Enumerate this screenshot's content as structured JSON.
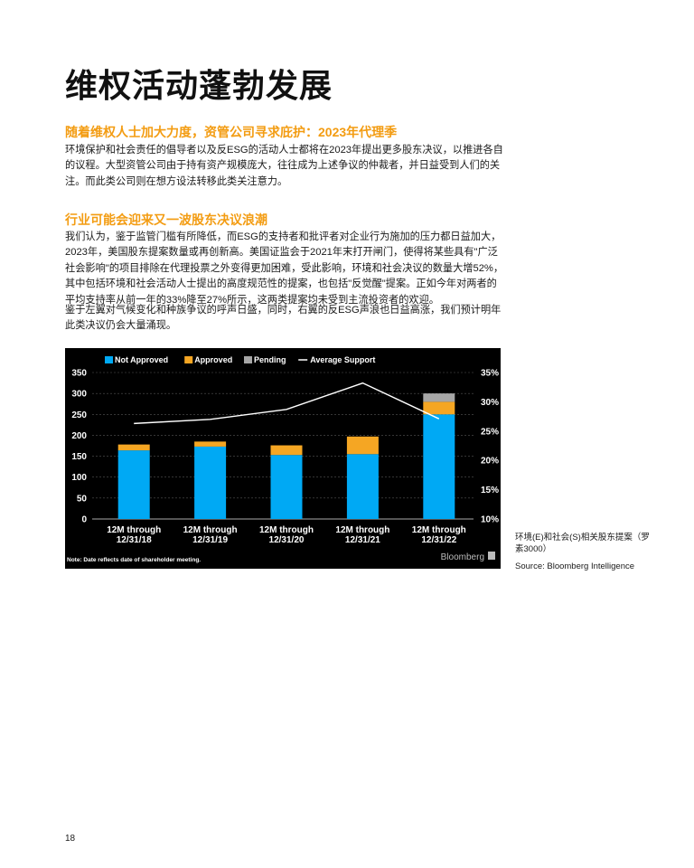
{
  "page": {
    "title": "维权活动蓬勃发展",
    "section1": {
      "heading": "随着维权人士加大力度，资管公司寻求庇护：2023年代理季",
      "body": "环境保护和社会责任的倡导者以及反ESG的活动人士都将在2023年提出更多股东决议，以推进各自的议程。大型资管公司由于持有资产规模庞大，往往成为上述争议的仲裁者，并日益受到人们的关注。而此类公司则在想方设法转移此类关注意力。"
    },
    "section2": {
      "heading": "行业可能会迎来又一波股东决议浪潮",
      "para1": "我们认为，鉴于监管门槛有所降低，而ESG的支持者和批评者对企业行为施加的压力都日益加大，2023年，美国股东提案数量或再创新高。美国证监会于2021年末打开闸门，使得将某些具有\"广泛社会影响\"的项目排除在代理投票之外变得更加困难，受此影响，环境和社会决议的数量大增52%，其中包括环境和社会活动人士提出的高度规范性的提案，也包括\"反觉醒\"提案。正如今年对两者的平均支持率从前一年的33%降至27%所示，这两类提案均未受到主流投资者的欢迎。",
      "para2": "鉴于左翼对气候变化和种族争议的呼声日盛，同时，右翼的反ESG声浪也日益高涨，我们预计明年此类决议仍会大量涌现。"
    },
    "caption": "环境(E)和社会(S)相关股东提案（罗素3000）",
    "source": "Source: Bloomberg Intelligence",
    "page_number": "18"
  },
  "chart_data": {
    "type": "bar",
    "stacked": true,
    "categories": [
      "12M through 12/31/18",
      "12M through 12/31/19",
      "12M through 12/31/20",
      "12M through 12/31/21",
      "12M through 12/31/22"
    ],
    "series": [
      {
        "name": "Not Approved",
        "color": "#00a9f4",
        "values": [
          164,
          173,
          153,
          155,
          250
        ]
      },
      {
        "name": "Approved",
        "color": "#f5a623",
        "values": [
          14,
          12,
          23,
          42,
          30
        ]
      },
      {
        "name": "Pending",
        "color": "#a6a6a6",
        "values": [
          0,
          0,
          0,
          0,
          20
        ]
      }
    ],
    "line": {
      "name": "Average Support",
      "color": "#ffffff",
      "values": [
        26.3,
        27.0,
        28.7,
        33.2,
        27.1
      ]
    },
    "ylim": [
      0,
      350
    ],
    "yticks": [
      "0",
      "50",
      "100",
      "150",
      "200",
      "250",
      "300",
      "350"
    ],
    "y2lim": [
      10,
      35
    ],
    "y2ticks": [
      "10%",
      "15%",
      "20%",
      "25%",
      "30%",
      "35%"
    ],
    "legend_position": "top-left",
    "grid": true,
    "note": "Note: Date reflects date of shareholder meeting.",
    "brand": "Bloomberg"
  }
}
